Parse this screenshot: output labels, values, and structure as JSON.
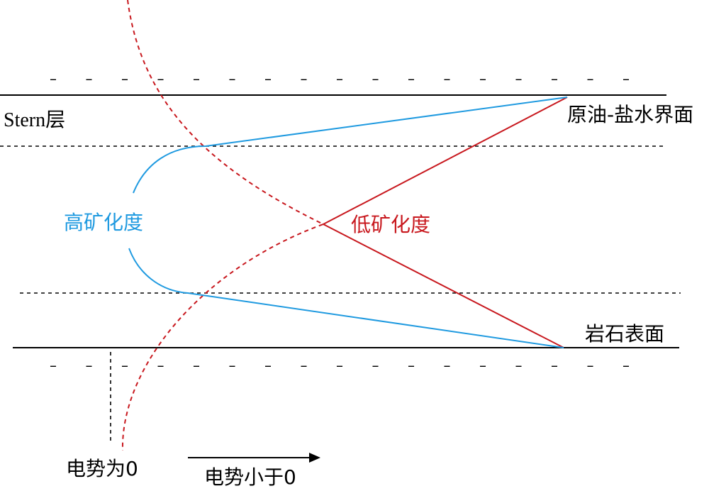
{
  "labels": {
    "stern_layer": "Stern层",
    "oil_brine_interface": "原油-盐水界面",
    "high_salinity": "高矿化度",
    "low_salinity": "低矿化度",
    "rock_surface": "岩石表面",
    "potential_zero": "电势为0",
    "potential_less_than_zero": "电势小于0"
  },
  "colors": {
    "high_salinity": "#1f9ae0",
    "low_salinity": "#c8181e",
    "lines": "#000000"
  },
  "charges": {
    "top_row": [
      "–",
      "–",
      "–",
      "–",
      "–",
      "–",
      "–",
      "–",
      "–",
      "–",
      "–",
      "–",
      "–",
      "–",
      "–",
      "–",
      "–"
    ],
    "bottom_row": [
      "–",
      "–",
      "–",
      "–",
      "–",
      "–",
      "–",
      "–",
      "–",
      "–",
      "–",
      "–",
      "–",
      "–",
      "–",
      "–",
      "–"
    ]
  }
}
